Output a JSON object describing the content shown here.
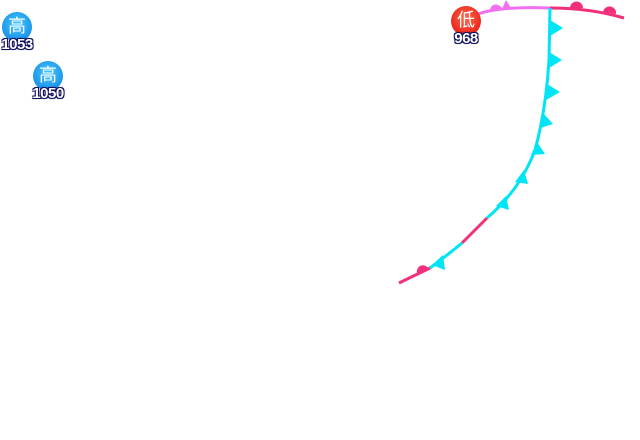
{
  "pressure_centers": [
    {
      "type": "high",
      "label": "高",
      "value": "1053"
    },
    {
      "type": "high",
      "label": "高",
      "value": "1050"
    },
    {
      "type": "low",
      "label": "低",
      "value": "968"
    }
  ],
  "fronts": {
    "cold_color": "#00e5f5",
    "warm_color": "#f0307a",
    "occluded_color": "#f070f0"
  }
}
